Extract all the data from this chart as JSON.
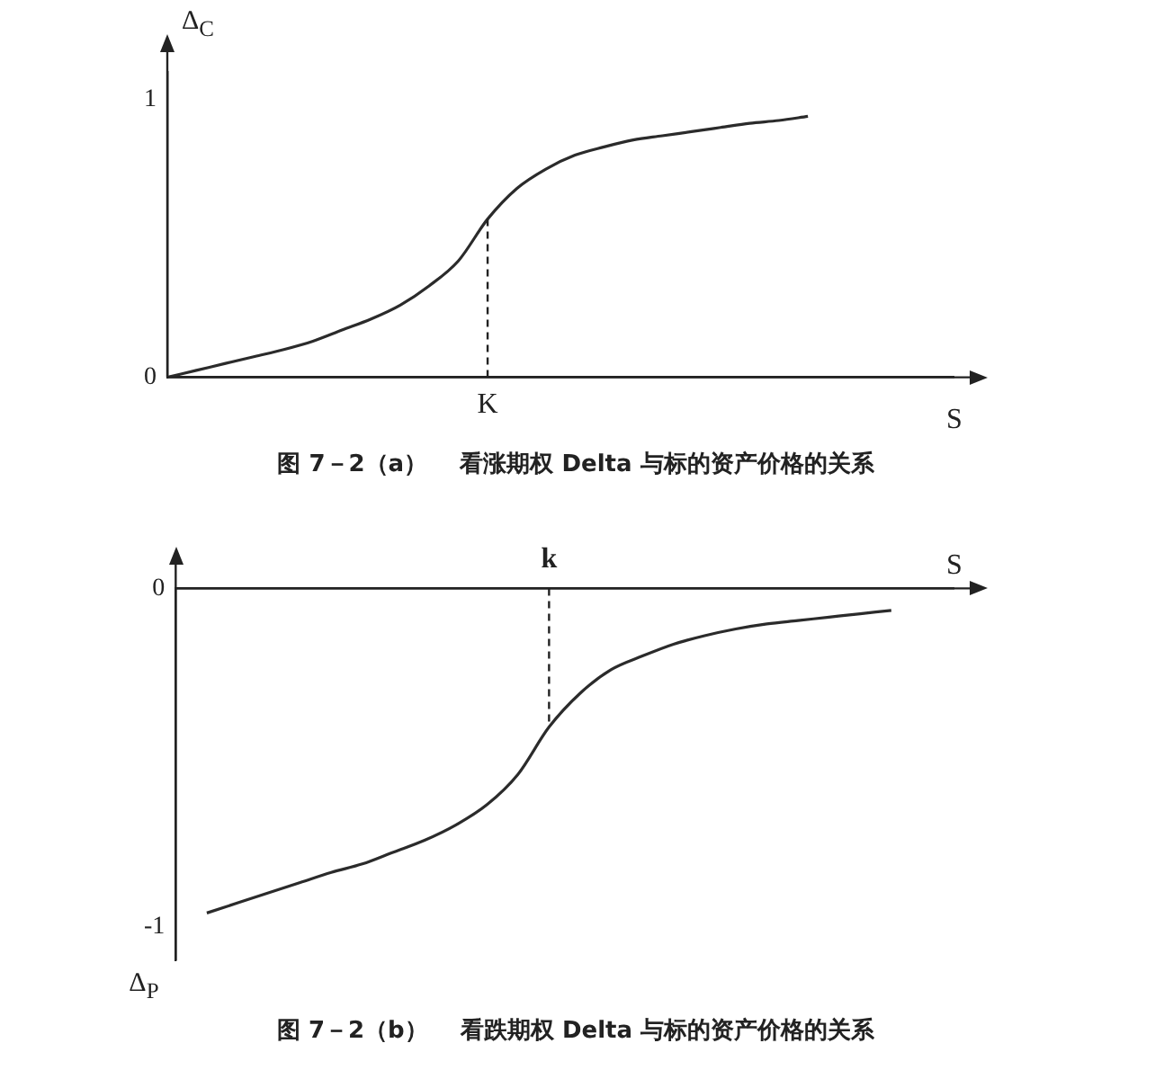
{
  "chart_data": [
    {
      "type": "line",
      "title": "图 7－2（a）    看涨期权 Delta 与标的资产价格的关系",
      "xlabel": "S",
      "ylabel": "Δ$_{C}$",
      "categories": [
        null,
        null,
        null,
        null,
        null,
        null,
        null,
        null,
        null,
        null,
        null,
        "K",
        null,
        null,
        null,
        null,
        null,
        null,
        null,
        null,
        null,
        null,
        null,
        null,
        null,
        null,
        null,
        null
      ],
      "series": [
        {
          "color": "#2b2b2b",
          "values": [
            0,
            0.025,
            0.05,
            0.075,
            0.1,
            0.13,
            0.17,
            0.21,
            0.26,
            0.33,
            0.42,
            0.57,
            0.68,
            0.75,
            0.8,
            0.83,
            0.855,
            0.87,
            0.885,
            0.9,
            0.915,
            0.925,
            0.94,
            null,
            null,
            null,
            null,
            null
          ]
        }
      ],
      "ylim": [
        0,
        1.1
      ],
      "yticks": [
        0,
        1
      ],
      "ref_lines": [
        {
          "axis": "x",
          "value": "K",
          "line_style": "dashed"
        }
      ]
    },
    {
      "type": "line",
      "title": "图 7－2（b）    看跌期权 Delta 与标的资产价格的关系",
      "xlabel": "S",
      "ylabel": "Δ$_{P}$",
      "categories": [
        null,
        null,
        null,
        null,
        null,
        null,
        null,
        null,
        null,
        null,
        null,
        null,
        "k",
        null,
        null,
        null,
        null,
        null,
        null,
        null,
        null,
        null,
        null,
        null,
        null,
        null
      ],
      "series": [
        {
          "color": "#2b2b2b",
          "values": [
            null,
            -0.96,
            -0.93,
            -0.9,
            -0.87,
            -0.84,
            -0.815,
            -0.78,
            -0.745,
            -0.7,
            -0.64,
            -0.55,
            -0.41,
            -0.31,
            -0.24,
            -0.2,
            -0.165,
            -0.14,
            -0.12,
            -0.105,
            -0.095,
            -0.085,
            -0.075,
            -0.065,
            null,
            null
          ]
        }
      ],
      "ylim": [
        -1.1,
        0
      ],
      "yticks": [
        -1,
        0
      ],
      "ref_lines": [
        {
          "axis": "x",
          "value": "k",
          "line_style": "dashed"
        }
      ]
    }
  ]
}
